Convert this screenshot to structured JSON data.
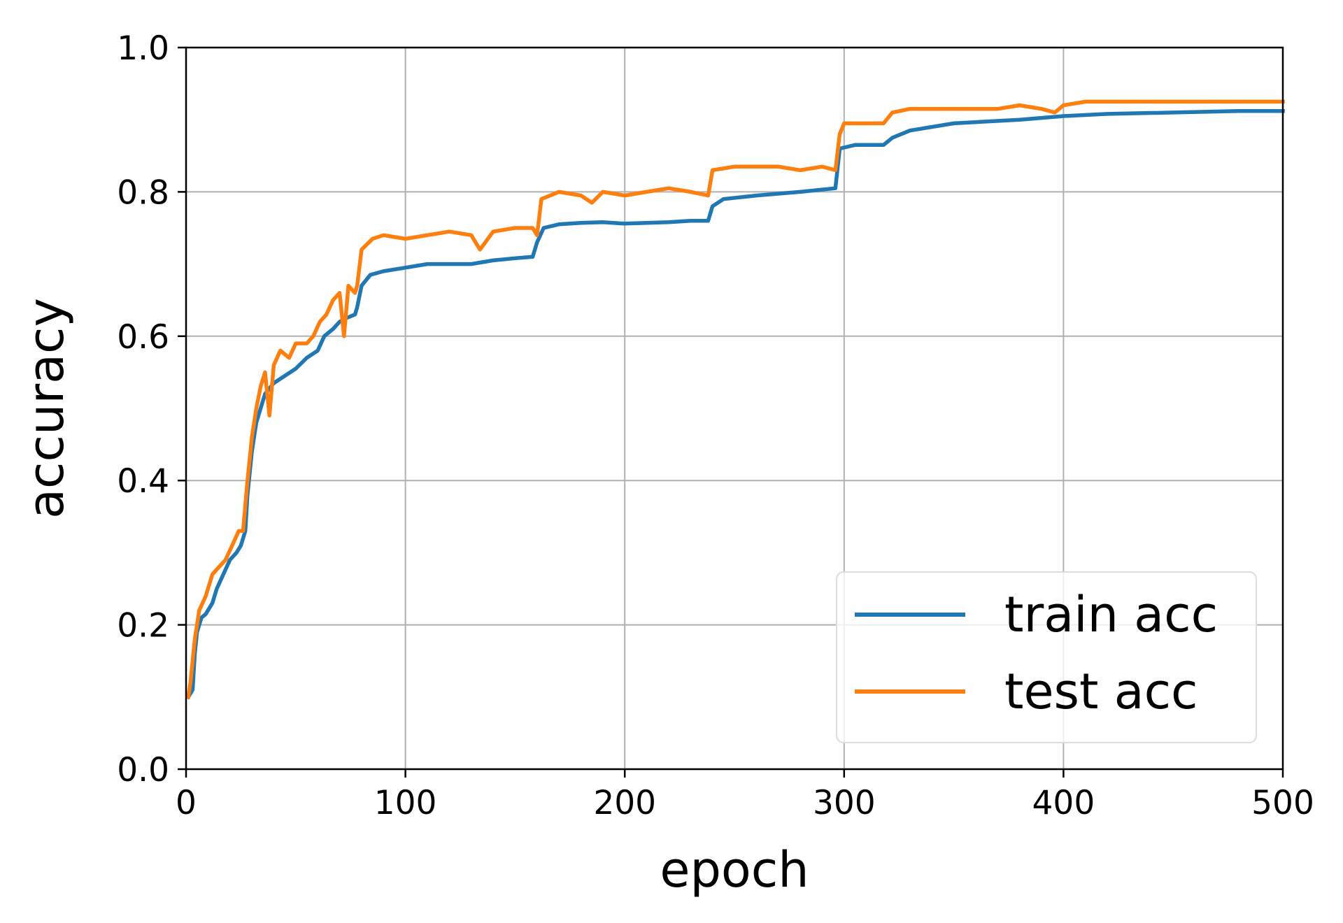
{
  "chart_data": {
    "type": "line",
    "title": "",
    "xlabel": "epoch",
    "ylabel": "accuracy",
    "xlim": [
      0,
      500
    ],
    "ylim": [
      0.0,
      1.0
    ],
    "xticks": [
      "0",
      "100",
      "200",
      "300",
      "400",
      "500"
    ],
    "yticks": [
      "0.0",
      "0.2",
      "0.4",
      "0.6",
      "0.8",
      "1.0"
    ],
    "grid": true,
    "legend_position": "lower-right",
    "series": [
      {
        "name": "train acc",
        "color": "#1f77b4",
        "points": [
          [
            1,
            0.1
          ],
          [
            3,
            0.11
          ],
          [
            4,
            0.16
          ],
          [
            5,
            0.19
          ],
          [
            7,
            0.21
          ],
          [
            9,
            0.215
          ],
          [
            12,
            0.23
          ],
          [
            14,
            0.25
          ],
          [
            17,
            0.27
          ],
          [
            20,
            0.29
          ],
          [
            23,
            0.3
          ],
          [
            25,
            0.31
          ],
          [
            27,
            0.33
          ],
          [
            28,
            0.38
          ],
          [
            30,
            0.44
          ],
          [
            32,
            0.48
          ],
          [
            34,
            0.5
          ],
          [
            36,
            0.52
          ],
          [
            40,
            0.535
          ],
          [
            45,
            0.545
          ],
          [
            50,
            0.555
          ],
          [
            55,
            0.57
          ],
          [
            60,
            0.58
          ],
          [
            63,
            0.6
          ],
          [
            67,
            0.61
          ],
          [
            70,
            0.62
          ],
          [
            73,
            0.625
          ],
          [
            77,
            0.63
          ],
          [
            78,
            0.64
          ],
          [
            80,
            0.67
          ],
          [
            84,
            0.685
          ],
          [
            90,
            0.69
          ],
          [
            100,
            0.695
          ],
          [
            110,
            0.7
          ],
          [
            120,
            0.7
          ],
          [
            130,
            0.7
          ],
          [
            140,
            0.705
          ],
          [
            150,
            0.708
          ],
          [
            158,
            0.71
          ],
          [
            160,
            0.73
          ],
          [
            163,
            0.75
          ],
          [
            170,
            0.755
          ],
          [
            180,
            0.757
          ],
          [
            190,
            0.758
          ],
          [
            200,
            0.756
          ],
          [
            210,
            0.757
          ],
          [
            220,
            0.758
          ],
          [
            230,
            0.76
          ],
          [
            238,
            0.76
          ],
          [
            240,
            0.78
          ],
          [
            245,
            0.79
          ],
          [
            260,
            0.795
          ],
          [
            280,
            0.8
          ],
          [
            296,
            0.805
          ],
          [
            298,
            0.86
          ],
          [
            305,
            0.865
          ],
          [
            318,
            0.865
          ],
          [
            322,
            0.875
          ],
          [
            330,
            0.885
          ],
          [
            350,
            0.895
          ],
          [
            380,
            0.9
          ],
          [
            400,
            0.905
          ],
          [
            420,
            0.908
          ],
          [
            450,
            0.91
          ],
          [
            480,
            0.912
          ],
          [
            500,
            0.912
          ]
        ]
      },
      {
        "name": "test acc",
        "color": "#ff7f0e",
        "points": [
          [
            1,
            0.1
          ],
          [
            2,
            0.12
          ],
          [
            4,
            0.18
          ],
          [
            6,
            0.22
          ],
          [
            9,
            0.24
          ],
          [
            12,
            0.27
          ],
          [
            15,
            0.28
          ],
          [
            18,
            0.29
          ],
          [
            21,
            0.31
          ],
          [
            24,
            0.33
          ],
          [
            26,
            0.33
          ],
          [
            28,
            0.4
          ],
          [
            30,
            0.46
          ],
          [
            32,
            0.5
          ],
          [
            34,
            0.53
          ],
          [
            36,
            0.55
          ],
          [
            38,
            0.49
          ],
          [
            40,
            0.56
          ],
          [
            43,
            0.58
          ],
          [
            47,
            0.57
          ],
          [
            50,
            0.59
          ],
          [
            55,
            0.59
          ],
          [
            58,
            0.6
          ],
          [
            61,
            0.62
          ],
          [
            64,
            0.63
          ],
          [
            67,
            0.65
          ],
          [
            70,
            0.66
          ],
          [
            72,
            0.6
          ],
          [
            74,
            0.67
          ],
          [
            77,
            0.66
          ],
          [
            78,
            0.67
          ],
          [
            80,
            0.72
          ],
          [
            85,
            0.735
          ],
          [
            90,
            0.74
          ],
          [
            100,
            0.735
          ],
          [
            110,
            0.74
          ],
          [
            120,
            0.745
          ],
          [
            130,
            0.74
          ],
          [
            134,
            0.72
          ],
          [
            140,
            0.745
          ],
          [
            150,
            0.75
          ],
          [
            158,
            0.75
          ],
          [
            160,
            0.74
          ],
          [
            162,
            0.79
          ],
          [
            170,
            0.8
          ],
          [
            180,
            0.795
          ],
          [
            185,
            0.785
          ],
          [
            190,
            0.8
          ],
          [
            200,
            0.795
          ],
          [
            210,
            0.8
          ],
          [
            220,
            0.805
          ],
          [
            230,
            0.8
          ],
          [
            238,
            0.795
          ],
          [
            240,
            0.83
          ],
          [
            250,
            0.835
          ],
          [
            260,
            0.835
          ],
          [
            270,
            0.835
          ],
          [
            280,
            0.83
          ],
          [
            290,
            0.835
          ],
          [
            296,
            0.83
          ],
          [
            298,
            0.88
          ],
          [
            300,
            0.895
          ],
          [
            310,
            0.895
          ],
          [
            318,
            0.895
          ],
          [
            322,
            0.91
          ],
          [
            330,
            0.915
          ],
          [
            350,
            0.915
          ],
          [
            360,
            0.915
          ],
          [
            370,
            0.915
          ],
          [
            380,
            0.92
          ],
          [
            390,
            0.915
          ],
          [
            396,
            0.91
          ],
          [
            400,
            0.92
          ],
          [
            410,
            0.925
          ],
          [
            430,
            0.925
          ],
          [
            450,
            0.925
          ],
          [
            470,
            0.925
          ],
          [
            490,
            0.925
          ],
          [
            500,
            0.925
          ]
        ]
      }
    ]
  }
}
